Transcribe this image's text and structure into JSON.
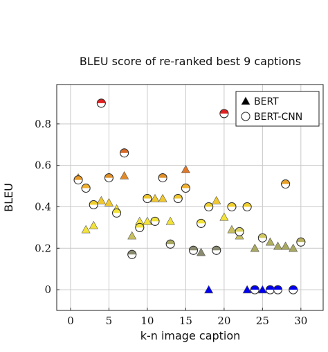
{
  "chart_data": {
    "type": "scatter",
    "title": "BLEU score of re-ranked best 9 captions",
    "xlabel": "k-n image caption",
    "ylabel": "BLEU",
    "xlim": [
      -1.8,
      32.9
    ],
    "ylim": [
      -0.1,
      0.99
    ],
    "xticks": [
      0,
      5,
      10,
      15,
      20,
      25,
      30
    ],
    "yticks": [
      0,
      0.2,
      0.4,
      0.6,
      0.8
    ],
    "grid": true,
    "legend": "upper right",
    "x": [
      1,
      2,
      3,
      4,
      5,
      6,
      7,
      8,
      9,
      10,
      11,
      12,
      13,
      14,
      15,
      16,
      17,
      18,
      19,
      20,
      21,
      22,
      23,
      24,
      25,
      26,
      27,
      28,
      29,
      30
    ],
    "series": [
      {
        "name": "BERT",
        "marker": "triangle",
        "values": [
          0.54,
          0.29,
          0.31,
          0.43,
          0.42,
          0.39,
          0.55,
          0.26,
          0.33,
          0.33,
          0.44,
          0.44,
          0.33,
          null,
          0.58,
          null,
          0.18,
          0,
          0.43,
          0.35,
          0.29,
          0.26,
          0,
          0.2,
          0,
          0.23,
          0.21,
          0.21,
          0.2,
          null
        ],
        "colors": [
          "#e89a28",
          "#f2e23a",
          "#f2e23a",
          "#f0c830",
          "#f0c830",
          "#f2e23a",
          "#e08a28",
          "#c8c060",
          "#f2e23a",
          "#f2e23a",
          "#f0c830",
          "#f0c830",
          "#f2e23a",
          null,
          "#e07828",
          null,
          "#8a8a70",
          "#0000ee",
          "#f0c830",
          "#f2e23a",
          "#c8c060",
          "#c8c060",
          "#0000ee",
          "#a8a860",
          "#0000ee",
          "#b0b060",
          "#a8a860",
          "#a8a860",
          "#a8a860",
          null
        ]
      },
      {
        "name": "BERT-CNN",
        "marker": "half-circle",
        "values": [
          0.53,
          0.49,
          0.41,
          0.9,
          0.54,
          0.37,
          0.66,
          0.17,
          0.3,
          0.44,
          0.33,
          0.54,
          0.22,
          0.44,
          0.49,
          0.19,
          0.32,
          0.4,
          0.19,
          0.85,
          0.4,
          0.28,
          0.4,
          0,
          0.25,
          0,
          0,
          0.51,
          0,
          0.23
        ],
        "colors": [
          "#e89a28",
          "#f0b030",
          "#f0d030",
          "#e02020",
          "#e09028",
          "#f2e23a",
          "#d86a28",
          "#8a8a70",
          "#f2e23a",
          "#f0c830",
          "#f2e23a",
          "#e09028",
          "#a8a860",
          "#f0c830",
          "#f0b030",
          "#8a8a70",
          "#f2e23a",
          "#f0d030",
          "#8a8a70",
          "#e02020",
          "#f0d030",
          "#d8d060",
          "#f0d030",
          "#0000ee",
          "#d0c860",
          "#0000ee",
          "#0000ee",
          "#e8a028",
          "#0000ee",
          "#b8b060"
        ]
      }
    ]
  }
}
